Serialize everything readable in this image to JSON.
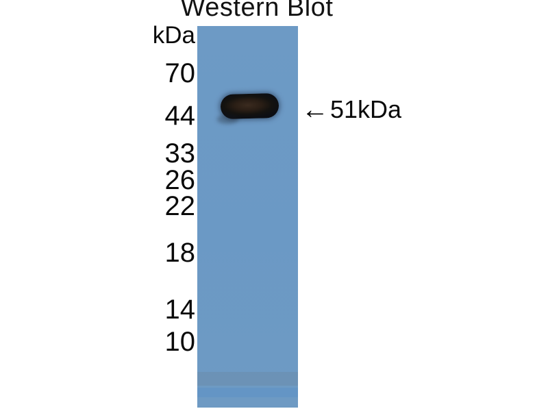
{
  "figure": {
    "title": "Western Blot",
    "unit_label": "kDa",
    "ladder_markers": [
      "70",
      "44",
      "33",
      "26",
      "22",
      "18",
      "14",
      "10"
    ],
    "band_annotation": {
      "arrow": "←",
      "label": "51kDa"
    },
    "band": {
      "approx_position_kda": "between 44 and 70 marker, at ~51 kDa",
      "lane_count": 1
    },
    "colors": {
      "background": "#ffffff",
      "membrane": "#6b99c5",
      "band_edge": "#0c0e13",
      "band_center": "#3b2b1f",
      "text": "#0a0a0a"
    }
  }
}
